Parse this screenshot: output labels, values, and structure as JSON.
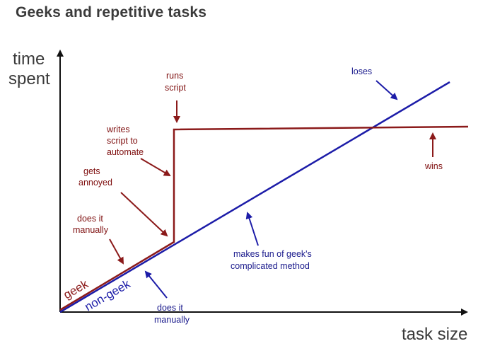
{
  "title": "Geeks and repetitive tasks",
  "colors": {
    "geek": "#8b1a1a",
    "non_geek": "#1c1ca8",
    "axis": "#111111",
    "text": "#3a3a3a"
  },
  "axes": {
    "y_label_line1": "time",
    "y_label_line2": "spent",
    "x_label": "task size"
  },
  "lines": {
    "geek": "geek",
    "non_geek": "non-geek"
  },
  "annotations": {
    "runs_script_1": "runs",
    "runs_script_2": "script",
    "writes_1": "writes",
    "writes_2": "script to",
    "writes_3": "automate",
    "annoyed_1": "gets",
    "annoyed_2": "annoyed",
    "geek_manual_1": "does it",
    "geek_manual_2": "manually",
    "wins": "wins",
    "loses": "loses",
    "fun_1": "makes fun of geek's",
    "fun_2": "complicated method",
    "nongeek_manual_1": "does it",
    "nongeek_manual_2": "manually"
  }
}
